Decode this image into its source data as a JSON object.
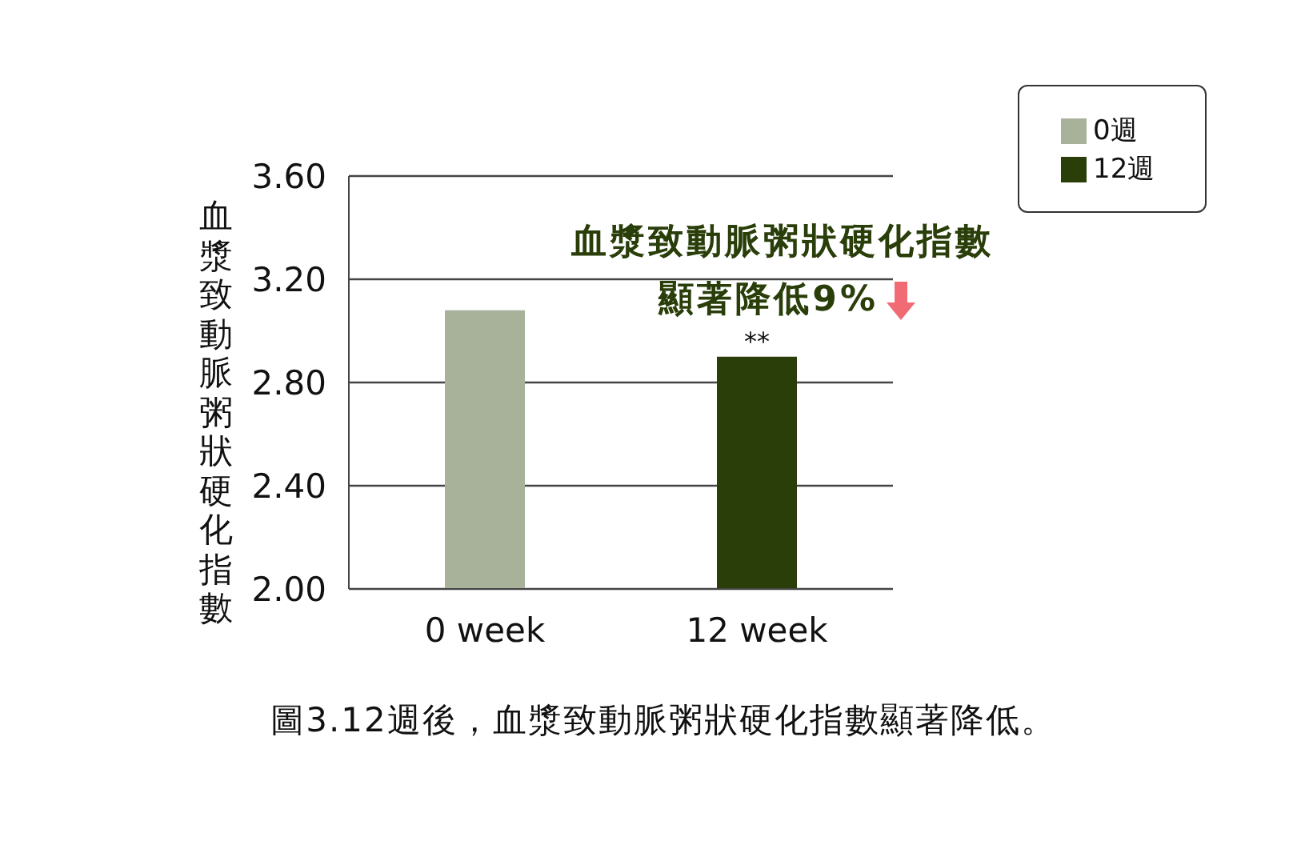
{
  "chart_data": {
    "type": "bar",
    "ylabel": "血漿致動脈粥狀硬化指數",
    "categories": [
      "0 week",
      "12 week"
    ],
    "series": [
      {
        "name": "0週",
        "color": "#a8b19a",
        "values": [
          3.08,
          null
        ]
      },
      {
        "name": "12週",
        "color": "#2a3e0a",
        "values": [
          null,
          2.9
        ]
      }
    ],
    "ylim": [
      2.0,
      3.6
    ],
    "yticks": [
      {
        "value": 2.0,
        "label": "2.00"
      },
      {
        "value": 2.4,
        "label": "2.40"
      },
      {
        "value": 2.8,
        "label": "2.80"
      },
      {
        "value": 3.2,
        "label": "3.20"
      },
      {
        "value": 3.6,
        "label": "3.60"
      }
    ],
    "grid": "y",
    "legend": "top right",
    "annotations": [
      {
        "text": "**",
        "x": "12 week",
        "y": 2.9
      },
      "血漿致動脈粥狀硬化指數",
      "顯著降低9%",
      "圖3.12週後，血漿致動脈粥狀硬化指數顯著降低。"
    ]
  }
}
